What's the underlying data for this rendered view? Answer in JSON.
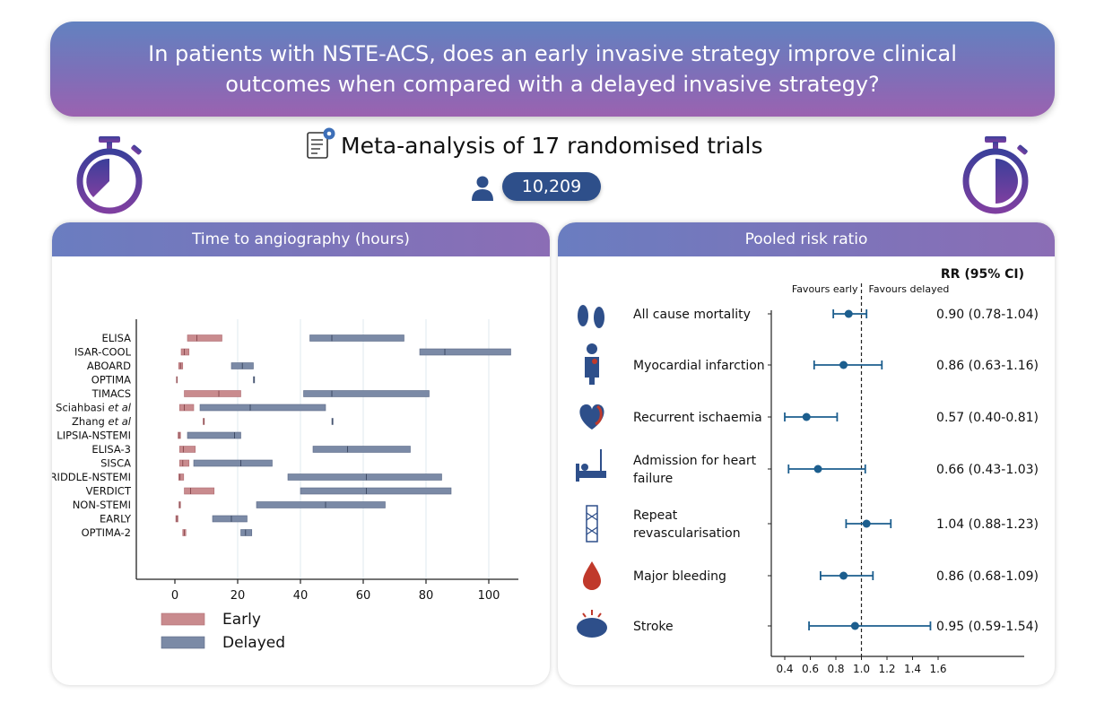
{
  "banner": {
    "question": "In patients with NSTE-ACS, does an early invasive strategy improve clinical outcomes when compared with a delayed invasive strategy?"
  },
  "meta": {
    "title": "Meta-analysis of 17 randomised trials",
    "patients": "10,209"
  },
  "left_panel": {
    "title": "Time to angiography (hours)"
  },
  "right_panel": {
    "title": "Pooled risk ratio"
  },
  "chart_data": [
    {
      "type": "bar",
      "subtype": "horizontal-range-boxes",
      "title": "Time to angiography (hours)",
      "xlim": [
        0,
        110
      ],
      "xticks": [
        0,
        20,
        40,
        60,
        80,
        100
      ],
      "categories": [
        "ELISA",
        "ISAR-COOL",
        "ABOARD",
        "OPTIMA",
        "TIMACS",
        "Sciahbasi et al",
        "Zhang et al",
        "LIPSIA-NSTEMI",
        "ELISA-3",
        "SISCA",
        "RIDDLE-NSTEMI",
        "VERDICT",
        "NON-STEMI",
        "EARLY",
        "OPTIMA-2"
      ],
      "category_italic_part": [
        "",
        "",
        "",
        "",
        "",
        "et al",
        "et al",
        "",
        "",
        "",
        "",
        "",
        "",
        "",
        ""
      ],
      "series": [
        {
          "name": "Early",
          "color": "#c98b8e",
          "ranges": [
            [
              4,
              15
            ],
            [
              2,
              4.5
            ],
            [
              1.2,
              2.5
            ],
            [
              0.5,
              0.7
            ],
            [
              3,
              21
            ],
            [
              1.5,
              6
            ],
            [
              9,
              9.4
            ],
            [
              1,
              1.8
            ],
            [
              1.5,
              6.5
            ],
            [
              1.5,
              4.5
            ],
            [
              1.2,
              2.8
            ],
            [
              3,
              12.5
            ],
            [
              1.3,
              1.8
            ],
            [
              0.3,
              1
            ],
            [
              2.5,
              3.5
            ]
          ],
          "medians": [
            7,
            3,
            1.8,
            0.6,
            14,
            3,
            9.2,
            1.4,
            2.7,
            2.5,
            1.6,
            5,
            1.5,
            0.6,
            3
          ]
        },
        {
          "name": "Delayed",
          "color": "#7b8aa6",
          "ranges": [
            [
              43,
              73
            ],
            [
              78,
              107
            ],
            [
              18,
              25
            ],
            [
              25,
              25.4
            ],
            [
              41,
              81
            ],
            [
              8,
              48
            ],
            [
              50,
              50.4
            ],
            [
              4,
              21
            ],
            [
              44,
              75
            ],
            [
              6,
              31
            ],
            [
              36,
              85
            ],
            [
              40,
              88
            ],
            [
              26,
              67
            ],
            [
              12,
              23
            ],
            [
              21,
              24.5
            ]
          ],
          "medians": [
            50,
            86,
            21.5,
            25.2,
            50,
            24,
            50.2,
            19,
            55,
            21,
            61,
            61,
            48,
            18,
            22.5
          ]
        }
      ],
      "legend": [
        "Early",
        "Delayed"
      ],
      "legend_position": "bottom-left"
    },
    {
      "type": "scatter",
      "subtype": "forest-plot",
      "title": "Pooled risk ratio",
      "column_header": "RR (95% CI)",
      "favours_left": "Favours early",
      "favours_right": "Favours delayed",
      "xlim": [
        0.3,
        1.65
      ],
      "xticks": [
        "0.4",
        "0.6",
        "0.8",
        "1.0",
        "1.2",
        "1.4",
        "1.6"
      ],
      "reference_line": 1.0,
      "color": "#1c5e8e",
      "outcomes": [
        {
          "label": [
            "All cause mortality"
          ],
          "rr": 0.9,
          "lo": 0.78,
          "hi": 1.04,
          "text": "0.90 (0.78-1.04)",
          "icon": "footprints-icon"
        },
        {
          "label": [
            "Myocardial infarction"
          ],
          "rr": 0.86,
          "lo": 0.63,
          "hi": 1.16,
          "text": "0.86 (0.63-1.16)",
          "icon": "chest-pain-person-icon"
        },
        {
          "label": [
            "Recurrent ischaemia"
          ],
          "rr": 0.57,
          "lo": 0.4,
          "hi": 0.81,
          "text": "0.57 (0.40-0.81)",
          "icon": "heart-icon"
        },
        {
          "label": [
            "Admission for heart",
            "failure"
          ],
          "rr": 0.66,
          "lo": 0.43,
          "hi": 1.03,
          "text": "0.66 (0.43-1.03)",
          "icon": "hospital-bed-icon"
        },
        {
          "label": [
            "Repeat",
            "revascularisation"
          ],
          "rr": 1.04,
          "lo": 0.88,
          "hi": 1.23,
          "text": "1.04 (0.88-1.23)",
          "icon": "stent-icon"
        },
        {
          "label": [
            "Major bleeding"
          ],
          "rr": 0.86,
          "lo": 0.68,
          "hi": 1.09,
          "text": "0.86 (0.68-1.09)",
          "icon": "blood-drop-icon"
        },
        {
          "label": [
            "Stroke"
          ],
          "rr": 0.95,
          "lo": 0.59,
          "hi": 1.54,
          "text": "0.95 (0.59-1.54)",
          "icon": "brain-icon"
        }
      ]
    }
  ]
}
